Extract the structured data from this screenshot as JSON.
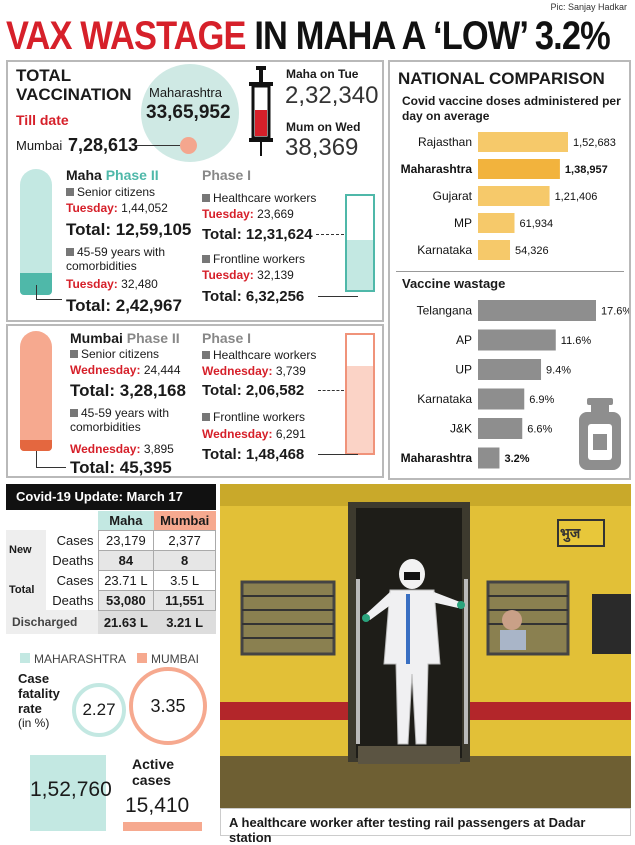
{
  "credit": "Pic: Sanjay Hadkar",
  "headline": {
    "red": "VAX WASTAGE",
    "black": "IN MAHA A ‘LOW’ 3.2%"
  },
  "total_vax": {
    "title1": "TOTAL",
    "title2": "VACCINATION",
    "till": "Till date",
    "state": "Maharashtra",
    "state_value": "33,65,952",
    "mumbai_label": "Mumbai",
    "mumbai_value": "7,28,613",
    "tue_label": "Maha on Tue",
    "tue_value": "2,32,340",
    "wed_label": "Mum on Wed",
    "wed_value": "38,369"
  },
  "maha": {
    "title": "Maha",
    "phase2": "Phase II",
    "sr": "Senior citizens",
    "sr_day": "Tuesday:",
    "sr_val": "1,44,052",
    "sr_total_label": "Total:",
    "sr_total": "12,59,105",
    "co": "45-59 years with comorbidities",
    "co_day": "Tuesday:",
    "co_val": "32,480",
    "co_total_label": "Total:",
    "co_total": "2,42,967",
    "phase1": "Phase I",
    "hc": "Healthcare workers",
    "hc_day": "Tuesday:",
    "hc_val": "23,669",
    "hc_total_label": "Total:",
    "hc_total": "12,31,624",
    "fl": "Frontline workers",
    "fl_day": "Tuesday:",
    "fl_val": "32,139",
    "fl_total_label": "Total:",
    "fl_total": "6,32,256"
  },
  "mumbai": {
    "title": "Mumbai",
    "phase2": "Phase II",
    "sr": "Senior citizens",
    "sr_day": "Wednesday:",
    "sr_val": "24,444",
    "sr_total_label": "Total:",
    "sr_total": "3,28,168",
    "co": "45-59 years with comorbidities",
    "co_day": "Wednesday:",
    "co_val": "3,895",
    "co_total_label": "Total:",
    "co_total": "45,395",
    "phase1": "Phase I",
    "hc": "Healthcare workers",
    "hc_day": "Wednesday:",
    "hc_val": "3,739",
    "hc_total_label": "Total:",
    "hc_total": "2,06,582",
    "fl": "Frontline workers",
    "fl_day": "Wednesday:",
    "fl_val": "6,291",
    "fl_total_label": "Total:",
    "fl_total": "1,48,468"
  },
  "national": {
    "title": "NATIONAL COMPARISON",
    "subtitle": "Covid vaccine doses administered per day on average",
    "wastage_title": "Vaccine wastage",
    "colors": {
      "doses": "#f6c96a",
      "doses_highlight": "#f2b33d",
      "wastage": "#8e8e8e"
    }
  },
  "chart_data": [
    {
      "type": "bar",
      "title": "NATIONAL COMPARISON",
      "categories": [
        "Rajasthan",
        "Maharashtra",
        "Gujarat",
        "MP",
        "Karnataka"
      ],
      "values": [
        152683,
        138957,
        121406,
        61934,
        54326
      ],
      "labels": [
        "1,52,683",
        "1,38,957",
        "1,21,406",
        "61,934",
        "54,326"
      ]
    },
    {
      "type": "bar",
      "title": "Vaccine wastage",
      "categories": [
        "Telangana",
        "AP",
        "UP",
        "Karnataka",
        "J&K",
        "Maharashtra"
      ],
      "values": [
        17.6,
        11.6,
        9.4,
        6.9,
        6.6,
        3.2
      ],
      "labels": [
        "17.6%",
        "11.6%",
        "9.4%",
        "6.9%",
        "6.6%",
        "3.2%"
      ]
    }
  ],
  "covid": {
    "title": "Covid-19 Update: March 17",
    "col_maha": "Maha",
    "col_mumbai": "Mumbai",
    "new": "New",
    "total": "Total",
    "cases": "Cases",
    "deaths": "Deaths",
    "discharged": "Discharged",
    "new_cases": [
      "23,179",
      "2,377"
    ],
    "new_deaths": [
      "84",
      "8"
    ],
    "total_cases": [
      "23.71 L",
      "3.5 L"
    ],
    "total_deaths": [
      "53,080",
      "11,551"
    ],
    "discharged_vals": [
      "21.63 L",
      "3.21 L"
    ],
    "legend_maha": "MAHARASHTRA",
    "legend_mumbai": "MUMBAI",
    "cfr_label1": "Case",
    "cfr_label2": "fatality",
    "cfr_label3": "rate",
    "cfr_label4": "(in %)",
    "cfr_maha": "2.27",
    "cfr_mumbai": "3.35",
    "active1": "Active",
    "active2": "cases",
    "active_maha": "1,52,760",
    "active_mumbai": "15,410"
  },
  "photo": {
    "caption": "A healthcare worker after testing rail passengers at Dadar station",
    "sign": "भुज"
  }
}
